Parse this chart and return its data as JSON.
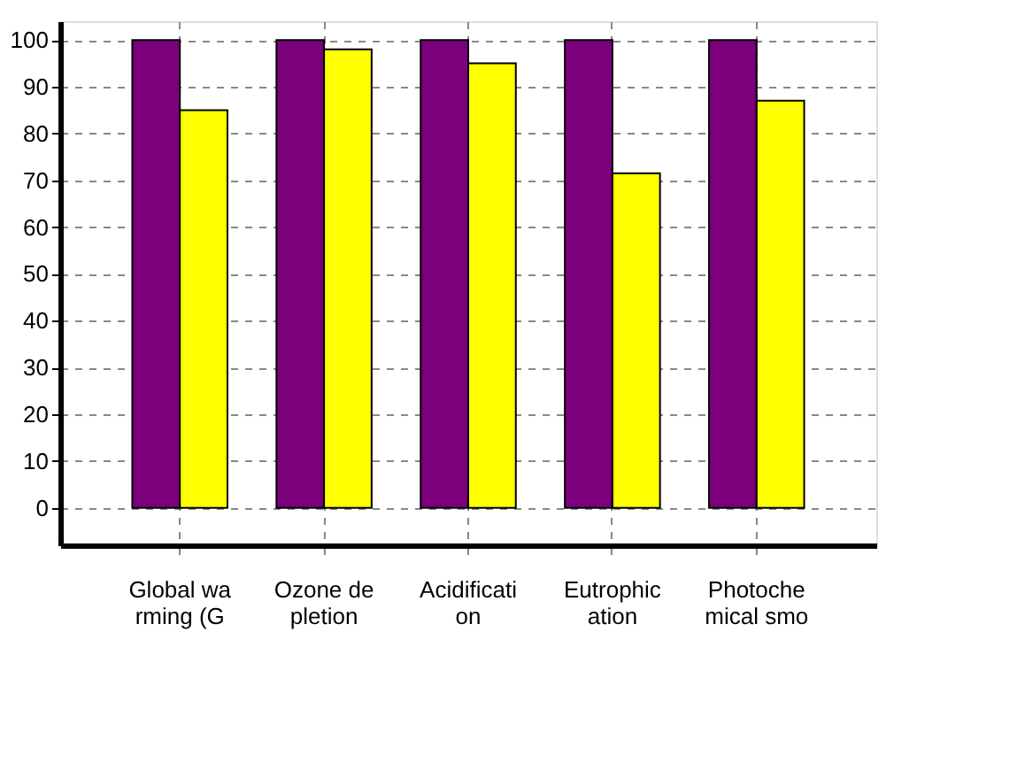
{
  "chart_data": {
    "type": "bar",
    "categories": [
      "Global wa\nrming (G",
      "Ozone de\npletion",
      "Acidificati\non",
      "Eutrophic\nation",
      "Photoche\nmical smo"
    ],
    "series": [
      {
        "color": "#7b007b",
        "values": [
          100,
          100,
          100,
          100,
          100
        ]
      },
      {
        "color": "#ffff00",
        "values": [
          85,
          98,
          95,
          71.5,
          87
        ]
      }
    ],
    "ylim": [
      -8,
      104
    ],
    "yticks": [
      0,
      10,
      20,
      30,
      40,
      50,
      60,
      70,
      80,
      90,
      100
    ],
    "grid": true,
    "legend": false
  }
}
